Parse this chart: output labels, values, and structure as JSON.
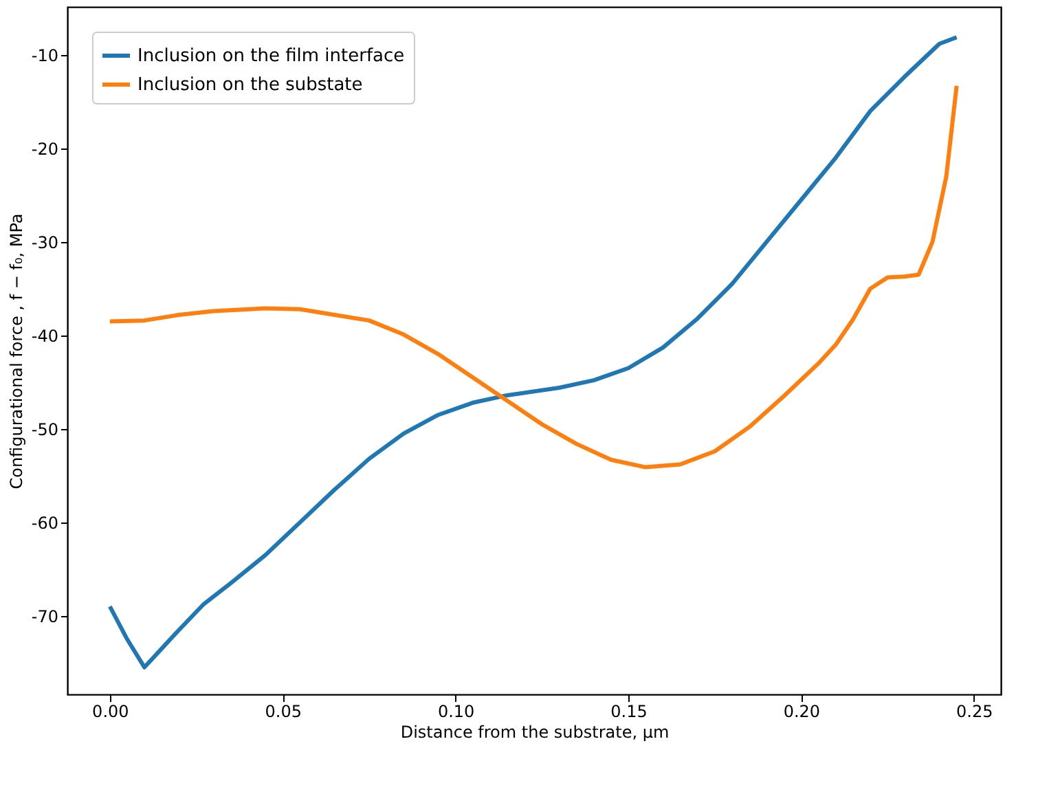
{
  "chart_data": {
    "type": "line",
    "xlabel": "Distance from the substrate, µm",
    "ylabel": "Configurational force , f − f₀, MPa",
    "xlim": [
      -0.0123,
      0.2578
    ],
    "ylim": [
      -78.4,
      -4.85
    ],
    "xticks": [
      {
        "value": 0,
        "label": "0.00"
      },
      0.05,
      {
        "value": 0.1,
        "label": "0.10"
      },
      0.15,
      {
        "value": 0.2,
        "label": "0.20"
      },
      0.25
    ],
    "yticks": [
      -70,
      -60,
      -50,
      -40,
      -30,
      -20,
      -10
    ],
    "grid": false,
    "legend": "top left",
    "line_style": "solid",
    "marker": "none",
    "series": [
      {
        "name": "Inclusion on the film interface",
        "color": "#1f77b4",
        "x": [
          0,
          0.005,
          0.01,
          0.015,
          0.02,
          0.027,
          0.035,
          0.045,
          0.055,
          0.065,
          0.075,
          0.085,
          0.095,
          0.105,
          0.115,
          0.13,
          0.14,
          0.15,
          0.16,
          0.17,
          0.18,
          0.19,
          0.2,
          0.21,
          0.22,
          0.23,
          0.24,
          0.245
        ],
        "values": [
          -69,
          -72.5,
          -75.5,
          -73.5,
          -71.5,
          -68.8,
          -66.5,
          -63.5,
          -60,
          -56.5,
          -53.2,
          -50.5,
          -48.5,
          -47.2,
          -46.4,
          -45.6,
          -44.8,
          -43.5,
          -41.3,
          -38.2,
          -34.5,
          -30,
          -25.5,
          -21,
          -16,
          -12.3,
          -8.8,
          -8.1
        ]
      },
      {
        "name": "Inclusion on the substate",
        "color": "#ff7f0e",
        "x": [
          0,
          0.01,
          0.02,
          0.03,
          0.045,
          0.055,
          0.065,
          0.075,
          0.085,
          0.095,
          0.105,
          0.115,
          0.125,
          0.135,
          0.145,
          0.155,
          0.165,
          0.175,
          0.185,
          0.195,
          0.205,
          0.21,
          0.215,
          0.22,
          0.225,
          0.23,
          0.234,
          0.238,
          0.242,
          0.245
        ],
        "values": [
          -38.5,
          -38.4,
          -37.8,
          -37.4,
          -37.1,
          -37.2,
          -37.8,
          -38.4,
          -39.9,
          -42,
          -44.5,
          -47,
          -49.5,
          -51.6,
          -53.3,
          -54.1,
          -53.8,
          -52.4,
          -49.8,
          -46.5,
          -43,
          -41,
          -38.3,
          -35,
          -33.8,
          -33.7,
          -33.5,
          -30,
          -23,
          -13.3
        ]
      }
    ]
  }
}
